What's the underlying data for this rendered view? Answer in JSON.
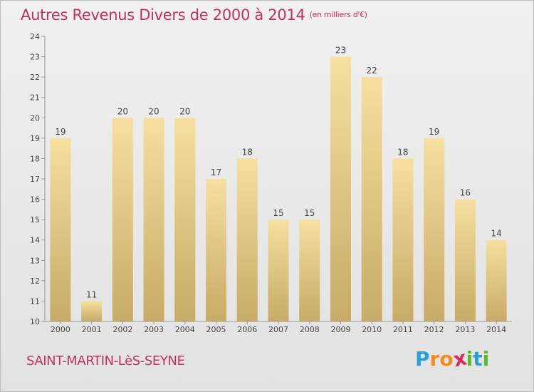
{
  "header": {
    "title": "Autres Revenus Divers de 2000 à 2014",
    "subtitle": "(en milliers d'€)"
  },
  "footer": {
    "commune": "SAINT-MARTIN-LèS-SEYNE",
    "logo_letters": [
      "P",
      "r",
      "o",
      "x",
      "i",
      "t",
      "i"
    ],
    "logo_colors": [
      "#2a9fd6",
      "#f08c1e",
      "#f08c1e",
      "#d62a5a",
      "#5cb82e",
      "#2a9fd6",
      "#5cb82e"
    ]
  },
  "chart_data": {
    "type": "bar",
    "categories": [
      "2000",
      "2001",
      "2002",
      "2003",
      "2004",
      "2005",
      "2006",
      "2007",
      "2008",
      "2009",
      "2010",
      "2011",
      "2012",
      "2013",
      "2014"
    ],
    "values": [
      19,
      11,
      20,
      20,
      20,
      17,
      18,
      15,
      15,
      23,
      22,
      18,
      19,
      16,
      14
    ],
    "title": "Autres Revenus Divers de 2000 à 2014",
    "ylim": [
      10,
      24
    ],
    "yticks": [
      10,
      11,
      12,
      13,
      14,
      15,
      16,
      17,
      18,
      19,
      20,
      21,
      22,
      23,
      24
    ],
    "grid": false,
    "colors": {
      "bar_light": "#f5dc9c",
      "bar_dark": "#c9ad68",
      "axis": "#9a9a9a"
    }
  }
}
